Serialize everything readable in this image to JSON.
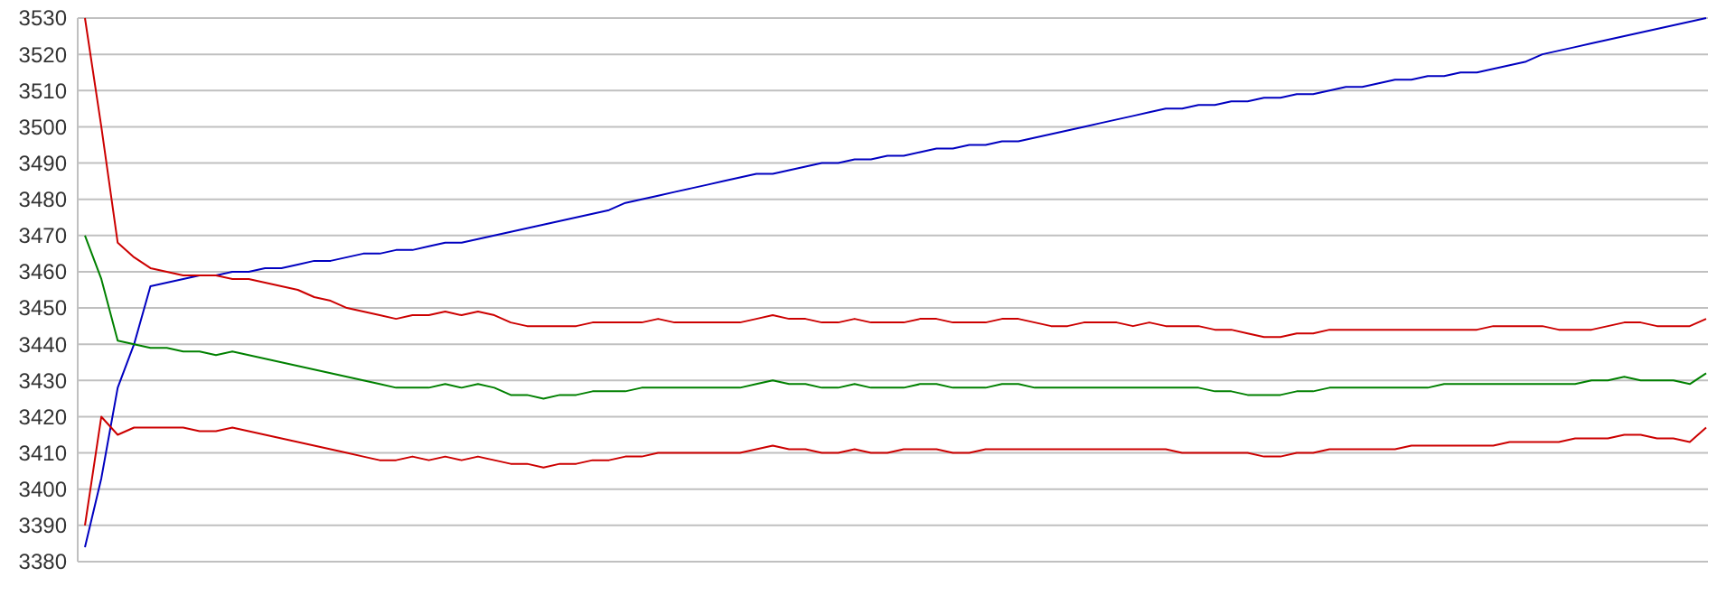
{
  "chart_data": {
    "type": "line",
    "categories": [
      null,
      null,
      null,
      null,
      null,
      null,
      null,
      null,
      null,
      null,
      null,
      null,
      null,
      null,
      null,
      null,
      null,
      null,
      null,
      null,
      null,
      null,
      null,
      null,
      null,
      null,
      null,
      null,
      null,
      null,
      null,
      null,
      null,
      null,
      null,
      null,
      null,
      null,
      null,
      null,
      null,
      null,
      null,
      null,
      null,
      null,
      null,
      null,
      null,
      null,
      null,
      null,
      null,
      null,
      null,
      null,
      null,
      null,
      null,
      null,
      null,
      null,
      null,
      null,
      null,
      null,
      null,
      null,
      null,
      null,
      null,
      null,
      null,
      null,
      null,
      null,
      null,
      null,
      null,
      null,
      null,
      null,
      null,
      null,
      null,
      null,
      null,
      null,
      null,
      null,
      null,
      null,
      null,
      null,
      null,
      null,
      null,
      null,
      null,
      null
    ],
    "ylim": [
      3380,
      3530
    ],
    "yticks": [
      3380,
      3390,
      3400,
      3410,
      3420,
      3430,
      3440,
      3450,
      3460,
      3470,
      3480,
      3490,
      3500,
      3510,
      3520,
      3530
    ],
    "grid": "y",
    "tick_labels": "y",
    "marker": "none",
    "line_style": "solid",
    "series": [
      {
        "color": "#0000c0",
        "values": [
          3384,
          3403,
          3428,
          3440,
          3456,
          3457,
          3458,
          3459,
          3459,
          3460,
          3460,
          3461,
          3461,
          3462,
          3463,
          3463,
          3464,
          3465,
          3465,
          3466,
          3466,
          3467,
          3468,
          3468,
          3469,
          3470,
          3471,
          3472,
          3473,
          3474,
          3475,
          3476,
          3477,
          3479,
          3480,
          3481,
          3482,
          3483,
          3484,
          3485,
          3486,
          3487,
          3487,
          3488,
          3489,
          3490,
          3490,
          3491,
          3491,
          3492,
          3492,
          3493,
          3494,
          3494,
          3495,
          3495,
          3496,
          3496,
          3497,
          3498,
          3499,
          3500,
          3501,
          3502,
          3503,
          3504,
          3505,
          3505,
          3506,
          3506,
          3507,
          3507,
          3508,
          3508,
          3509,
          3509,
          3510,
          3511,
          3511,
          3512,
          3513,
          3513,
          3514,
          3514,
          3515,
          3515,
          3516,
          3517,
          3518,
          3520,
          3521,
          3522,
          3523,
          3524,
          3525,
          3526,
          3527,
          3528,
          3529,
          3530
        ]
      },
      {
        "color": "#cc0000",
        "values": [
          3530,
          3500,
          3468,
          3464,
          3461,
          3460,
          3459,
          3459,
          3459,
          3458,
          3458,
          3457,
          3456,
          3455,
          3453,
          3452,
          3450,
          3449,
          3448,
          3447,
          3448,
          3448,
          3449,
          3448,
          3449,
          3448,
          3446,
          3445,
          3445,
          3445,
          3445,
          3446,
          3446,
          3446,
          3446,
          3447,
          3446,
          3446,
          3446,
          3446,
          3446,
          3447,
          3448,
          3447,
          3447,
          3446,
          3446,
          3447,
          3446,
          3446,
          3446,
          3447,
          3447,
          3446,
          3446,
          3446,
          3447,
          3447,
          3446,
          3445,
          3445,
          3446,
          3446,
          3446,
          3445,
          3446,
          3445,
          3445,
          3445,
          3444,
          3444,
          3443,
          3442,
          3442,
          3443,
          3443,
          3444,
          3444,
          3444,
          3444,
          3444,
          3444,
          3444,
          3444,
          3444,
          3444,
          3445,
          3445,
          3445,
          3445,
          3444,
          3444,
          3444,
          3445,
          3446,
          3446,
          3445,
          3445,
          3445,
          3447
        ]
      },
      {
        "color": "#008000",
        "values": [
          3470,
          3458,
          3441,
          3440,
          3439,
          3439,
          3438,
          3438,
          3437,
          3438,
          3437,
          3436,
          3435,
          3434,
          3433,
          3432,
          3431,
          3430,
          3429,
          3428,
          3428,
          3428,
          3429,
          3428,
          3429,
          3428,
          3426,
          3426,
          3425,
          3426,
          3426,
          3427,
          3427,
          3427,
          3428,
          3428,
          3428,
          3428,
          3428,
          3428,
          3428,
          3429,
          3430,
          3429,
          3429,
          3428,
          3428,
          3429,
          3428,
          3428,
          3428,
          3429,
          3429,
          3428,
          3428,
          3428,
          3429,
          3429,
          3428,
          3428,
          3428,
          3428,
          3428,
          3428,
          3428,
          3428,
          3428,
          3428,
          3428,
          3427,
          3427,
          3426,
          3426,
          3426,
          3427,
          3427,
          3428,
          3428,
          3428,
          3428,
          3428,
          3428,
          3428,
          3429,
          3429,
          3429,
          3429,
          3429,
          3429,
          3429,
          3429,
          3429,
          3430,
          3430,
          3431,
          3430,
          3430,
          3430,
          3429,
          3432
        ]
      },
      {
        "color": "#cc0000",
        "values": [
          3390,
          3420,
          3415,
          3417,
          3417,
          3417,
          3417,
          3416,
          3416,
          3417,
          3416,
          3415,
          3414,
          3413,
          3412,
          3411,
          3410,
          3409,
          3408,
          3408,
          3409,
          3408,
          3409,
          3408,
          3409,
          3408,
          3407,
          3407,
          3406,
          3407,
          3407,
          3408,
          3408,
          3409,
          3409,
          3410,
          3410,
          3410,
          3410,
          3410,
          3410,
          3411,
          3412,
          3411,
          3411,
          3410,
          3410,
          3411,
          3410,
          3410,
          3411,
          3411,
          3411,
          3410,
          3410,
          3411,
          3411,
          3411,
          3411,
          3411,
          3411,
          3411,
          3411,
          3411,
          3411,
          3411,
          3411,
          3410,
          3410,
          3410,
          3410,
          3410,
          3409,
          3409,
          3410,
          3410,
          3411,
          3411,
          3411,
          3411,
          3411,
          3412,
          3412,
          3412,
          3412,
          3412,
          3412,
          3413,
          3413,
          3413,
          3413,
          3414,
          3414,
          3414,
          3415,
          3415,
          3414,
          3414,
          3413,
          3417
        ]
      }
    ]
  }
}
